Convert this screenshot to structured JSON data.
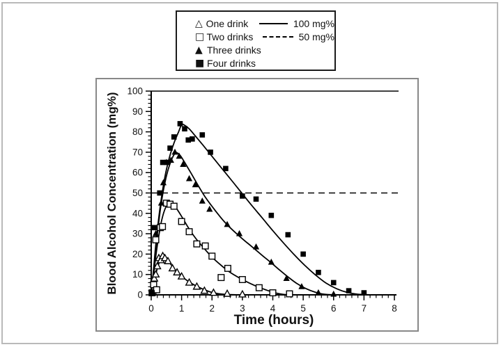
{
  "colors": {
    "ink": "#000000",
    "background": "#ffffff",
    "chart_frame": "#888888",
    "outer_frame": "#b9b9b9"
  },
  "legend": {
    "series": [
      {
        "label": "One drink",
        "glyph": "△",
        "marker": "triangle-open"
      },
      {
        "label": "Two drinks",
        "glyph": "□",
        "marker": "square-open"
      },
      {
        "label": "Three drinks",
        "glyph": "▲",
        "marker": "triangle-filled"
      },
      {
        "label": "Four drinks",
        "glyph": "■",
        "marker": "square-filled"
      }
    ],
    "ref_lines": [
      {
        "label": "100 mg%",
        "style": "solid"
      },
      {
        "label": "50 mg%",
        "style": "dashed"
      }
    ]
  },
  "chart_data": {
    "type": "scatter",
    "title": "",
    "xlabel": "Time (hours)",
    "ylabel": "Blood Alcohol Concentration (mg%)",
    "xlim": [
      0,
      8
    ],
    "ylim": [
      0,
      100
    ],
    "x_ticks": [
      0,
      1,
      2,
      3,
      4,
      5,
      6,
      7,
      8
    ],
    "y_ticks": [
      0,
      10,
      20,
      30,
      40,
      50,
      60,
      70,
      80,
      90,
      100
    ],
    "x_minor_step": 0.2,
    "y_minor_step": 2,
    "grid": false,
    "legend_position": "top-center-outside",
    "reference_lines": [
      {
        "y": 100,
        "style": "solid",
        "label": "100 mg%"
      },
      {
        "y": 50,
        "style": "dashed",
        "label": "50 mg%"
      }
    ],
    "series": [
      {
        "name": "One drink",
        "marker": "triangle-open",
        "points": [
          [
            0.05,
            2
          ],
          [
            0.1,
            8
          ],
          [
            0.15,
            10
          ],
          [
            0.2,
            14
          ],
          [
            0.25,
            18
          ],
          [
            0.32,
            17
          ],
          [
            0.38,
            19
          ],
          [
            0.45,
            18
          ],
          [
            0.55,
            16.5
          ],
          [
            0.7,
            13
          ],
          [
            0.85,
            11
          ],
          [
            1.0,
            9
          ],
          [
            1.25,
            6
          ],
          [
            1.5,
            4
          ],
          [
            1.75,
            2
          ],
          [
            2.05,
            1
          ],
          [
            2.5,
            0.5
          ],
          [
            3.0,
            0.2
          ]
        ],
        "curve": [
          [
            0,
            0
          ],
          [
            0.08,
            5
          ],
          [
            0.15,
            10
          ],
          [
            0.22,
            14
          ],
          [
            0.3,
            17
          ],
          [
            0.4,
            18.5
          ],
          [
            0.5,
            17.5
          ],
          [
            0.62,
            15.5
          ],
          [
            0.75,
            13
          ],
          [
            0.9,
            10.5
          ],
          [
            1.05,
            8.5
          ],
          [
            1.25,
            6.3
          ],
          [
            1.5,
            4.2
          ],
          [
            1.75,
            2.5
          ],
          [
            2.0,
            1.2
          ],
          [
            2.3,
            0.4
          ],
          [
            2.6,
            0.1
          ],
          [
            3.05,
            0
          ]
        ]
      },
      {
        "name": "Two drinks",
        "marker": "square-open",
        "points": [
          [
            0.03,
            1
          ],
          [
            0.08,
            5
          ],
          [
            0.18,
            2.5
          ],
          [
            0.15,
            27
          ],
          [
            0.3,
            33
          ],
          [
            0.37,
            33.5
          ],
          [
            0.5,
            45
          ],
          [
            0.62,
            44.5
          ],
          [
            0.75,
            43.5
          ],
          [
            1.0,
            36
          ],
          [
            1.25,
            31
          ],
          [
            1.5,
            25
          ],
          [
            1.78,
            24
          ],
          [
            2.0,
            19
          ],
          [
            2.3,
            8.5
          ],
          [
            2.52,
            13
          ],
          [
            3.0,
            7.5
          ],
          [
            3.55,
            3.5
          ],
          [
            4.0,
            1
          ],
          [
            4.55,
            0.5
          ]
        ],
        "curve": [
          [
            0,
            0
          ],
          [
            0.08,
            10
          ],
          [
            0.16,
            20
          ],
          [
            0.25,
            29
          ],
          [
            0.35,
            37
          ],
          [
            0.48,
            43
          ],
          [
            0.6,
            45
          ],
          [
            0.72,
            44.5
          ],
          [
            0.85,
            42
          ],
          [
            1.0,
            38.5
          ],
          [
            1.2,
            33.5
          ],
          [
            1.45,
            28
          ],
          [
            1.7,
            23.5
          ],
          [
            2.0,
            18.5
          ],
          [
            2.3,
            14.5
          ],
          [
            2.6,
            11
          ],
          [
            2.9,
            8.3
          ],
          [
            3.2,
            6
          ],
          [
            3.5,
            4
          ],
          [
            3.8,
            2.3
          ],
          [
            4.1,
            0.9
          ],
          [
            4.35,
            0.2
          ],
          [
            4.65,
            0
          ]
        ]
      },
      {
        "name": "Three drinks",
        "marker": "triangle-filled",
        "points": [
          [
            0.03,
            0.5
          ],
          [
            0.15,
            30
          ],
          [
            0.33,
            45
          ],
          [
            0.4,
            55
          ],
          [
            0.5,
            65
          ],
          [
            0.65,
            66
          ],
          [
            0.78,
            70
          ],
          [
            0.92,
            68
          ],
          [
            1.05,
            64
          ],
          [
            1.25,
            57
          ],
          [
            1.45,
            54
          ],
          [
            1.68,
            46
          ],
          [
            1.92,
            42
          ],
          [
            2.5,
            34.5
          ],
          [
            2.9,
            30
          ],
          [
            3.45,
            23.5
          ],
          [
            3.95,
            16
          ],
          [
            4.45,
            8
          ],
          [
            4.95,
            4
          ],
          [
            5.5,
            1
          ],
          [
            6.0,
            0.3
          ]
        ],
        "curve": [
          [
            0,
            0
          ],
          [
            0.08,
            12
          ],
          [
            0.16,
            24
          ],
          [
            0.25,
            36
          ],
          [
            0.35,
            47
          ],
          [
            0.48,
            57
          ],
          [
            0.6,
            63.5
          ],
          [
            0.72,
            68
          ],
          [
            0.82,
            69.8
          ],
          [
            0.95,
            68.5
          ],
          [
            1.1,
            65
          ],
          [
            1.3,
            60
          ],
          [
            1.55,
            53.5
          ],
          [
            1.8,
            47.5
          ],
          [
            2.1,
            41.5
          ],
          [
            2.4,
            36
          ],
          [
            2.7,
            31.5
          ],
          [
            3.0,
            27.5
          ],
          [
            3.3,
            23.8
          ],
          [
            3.6,
            20
          ],
          [
            3.9,
            16.3
          ],
          [
            4.2,
            12.5
          ],
          [
            4.5,
            8.8
          ],
          [
            4.8,
            5.5
          ],
          [
            5.1,
            3
          ],
          [
            5.4,
            1.3
          ],
          [
            5.7,
            0.3
          ],
          [
            6.1,
            0
          ]
        ]
      },
      {
        "name": "Four drinks",
        "marker": "square-filled",
        "points": [
          [
            0.03,
            1
          ],
          [
            0.1,
            33
          ],
          [
            0.28,
            50
          ],
          [
            0.38,
            65
          ],
          [
            0.52,
            65
          ],
          [
            0.62,
            72
          ],
          [
            0.75,
            77.5
          ],
          [
            0.95,
            84
          ],
          [
            1.1,
            81.5
          ],
          [
            1.22,
            76
          ],
          [
            1.35,
            76.5
          ],
          [
            1.68,
            78.5
          ],
          [
            1.95,
            70
          ],
          [
            2.45,
            62
          ],
          [
            3.0,
            48.5
          ],
          [
            3.45,
            47
          ],
          [
            3.95,
            39
          ],
          [
            4.5,
            29.5
          ],
          [
            5.0,
            20
          ],
          [
            5.5,
            11
          ],
          [
            6.0,
            6
          ],
          [
            6.5,
            2
          ],
          [
            7.0,
            1
          ]
        ],
        "curve": [
          [
            0,
            0
          ],
          [
            0.08,
            13
          ],
          [
            0.16,
            26
          ],
          [
            0.25,
            38
          ],
          [
            0.35,
            49
          ],
          [
            0.48,
            60
          ],
          [
            0.6,
            67.5
          ],
          [
            0.75,
            74.5
          ],
          [
            0.9,
            80
          ],
          [
            1.0,
            83.5
          ],
          [
            1.1,
            83.2
          ],
          [
            1.25,
            81.5
          ],
          [
            1.45,
            78
          ],
          [
            1.7,
            73.5
          ],
          [
            2.0,
            68
          ],
          [
            2.3,
            62.5
          ],
          [
            2.6,
            57
          ],
          [
            2.95,
            50.5
          ],
          [
            3.3,
            44
          ],
          [
            3.65,
            37.8
          ],
          [
            4.0,
            31.5
          ],
          [
            4.35,
            25.5
          ],
          [
            4.7,
            19.8
          ],
          [
            5.05,
            14.5
          ],
          [
            5.4,
            9.8
          ],
          [
            5.75,
            5.8
          ],
          [
            6.1,
            3
          ],
          [
            6.45,
            1.2
          ],
          [
            6.8,
            0.3
          ],
          [
            7.35,
            0
          ]
        ]
      }
    ]
  }
}
